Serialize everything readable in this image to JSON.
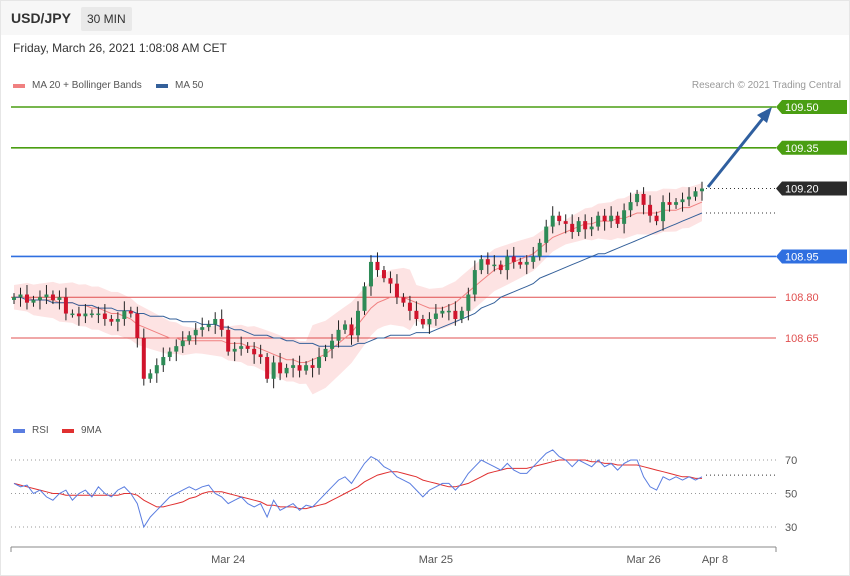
{
  "header": {
    "symbol": "USD/JPY",
    "timeframe": "30 MIN"
  },
  "date_text": "Friday, March 26, 2021 1:08:08 AM CET",
  "legend": {
    "ma20_label": "MA 20 + Bollinger Bands",
    "ma50_label": "MA 50",
    "credit": "Research © 2021 Trading Central"
  },
  "rsi_legend": {
    "rsi_label": "RSI",
    "ma9_label": "9MA"
  },
  "colors": {
    "ma20": "#f08080",
    "band_fill": "#fde3e3",
    "ma50": "#34609a",
    "up_candle": "#2e8b57",
    "down_candle": "#d0142c",
    "target": "#4a9e12",
    "pivot": "#2f6fe0",
    "support": "#e05050",
    "current": "#2b2b2b",
    "arrow": "#2f5f9f",
    "rsi": "#5a7de0",
    "rsi_ma": "#e03030"
  },
  "chart_data": [
    {
      "type": "candlestick",
      "title": "",
      "price_range": [
        108.44,
        109.56
      ],
      "x_labels": [
        {
          "label": "Mar 24",
          "index": 33
        },
        {
          "label": "Mar 25",
          "index": 65
        },
        {
          "label": "Mar 26",
          "index": 97
        },
        {
          "label": "Apr 8",
          "index": 108
        }
      ],
      "levels": [
        {
          "value": 109.5,
          "label": "109.50",
          "kind": "target"
        },
        {
          "value": 109.35,
          "label": "109.35",
          "kind": "target"
        },
        {
          "value": 109.2,
          "label": "109.20",
          "kind": "current"
        },
        {
          "value": 108.95,
          "label": "108.95",
          "kind": "pivot"
        },
        {
          "value": 108.8,
          "label": "108.80",
          "kind": "support"
        },
        {
          "value": 108.65,
          "label": "108.65",
          "kind": "support"
        }
      ],
      "close_prices": [
        108.8,
        108.81,
        108.78,
        108.79,
        108.8,
        108.81,
        108.79,
        108.8,
        108.74,
        108.74,
        108.73,
        108.74,
        108.74,
        108.74,
        108.72,
        108.71,
        108.72,
        108.75,
        108.74,
        108.65,
        108.5,
        108.52,
        108.55,
        108.58,
        108.6,
        108.62,
        108.64,
        108.66,
        108.68,
        108.69,
        108.7,
        108.72,
        108.68,
        108.6,
        108.61,
        108.62,
        108.61,
        108.59,
        108.58,
        108.5,
        108.56,
        108.52,
        108.54,
        108.55,
        108.53,
        108.55,
        108.54,
        108.58,
        108.61,
        108.64,
        108.68,
        108.7,
        108.66,
        108.75,
        108.84,
        108.93,
        108.9,
        108.87,
        108.85,
        108.8,
        108.78,
        108.75,
        108.72,
        108.7,
        108.72,
        108.74,
        108.75,
        108.75,
        108.72,
        108.75,
        108.81,
        108.9,
        108.94,
        108.92,
        108.92,
        108.9,
        108.95,
        108.93,
        108.92,
        108.93,
        108.95,
        109.0,
        109.06,
        109.1,
        109.08,
        109.07,
        109.04,
        109.08,
        109.05,
        109.06,
        109.1,
        109.08,
        109.1,
        109.07,
        109.12,
        109.15,
        109.18,
        109.14,
        109.1,
        109.08,
        109.15,
        109.14,
        109.15,
        109.16,
        109.17,
        109.19,
        109.2
      ],
      "ma20": [
        108.8,
        108.8,
        108.8,
        108.79,
        108.79,
        108.79,
        108.79,
        108.78,
        108.78,
        108.78,
        108.77,
        108.77,
        108.76,
        108.76,
        108.75,
        108.74,
        108.74,
        108.73,
        108.72,
        108.7,
        108.69,
        108.68,
        108.67,
        108.66,
        108.65,
        108.65,
        108.64,
        108.64,
        108.64,
        108.64,
        108.64,
        108.64,
        108.64,
        108.63,
        108.63,
        108.63,
        108.62,
        108.62,
        108.61,
        108.6,
        108.59,
        108.58,
        108.57,
        108.57,
        108.56,
        108.56,
        108.57,
        108.58,
        108.59,
        108.61,
        108.63,
        108.65,
        108.67,
        108.7,
        108.73,
        108.76,
        108.78,
        108.79,
        108.8,
        108.8,
        108.8,
        108.79,
        108.78,
        108.77,
        108.76,
        108.76,
        108.76,
        108.77,
        108.78,
        108.8,
        108.82,
        108.84,
        108.86,
        108.88,
        108.9,
        108.91,
        108.92,
        108.93,
        108.94,
        108.95,
        108.96,
        108.98,
        109.0,
        109.02,
        109.03,
        109.04,
        109.05,
        109.06,
        109.07,
        109.07,
        109.08,
        109.08,
        109.08,
        109.09,
        109.09,
        109.1,
        109.11,
        109.11,
        109.11,
        109.11,
        109.12,
        109.12,
        109.12,
        109.13,
        109.13,
        109.14,
        109.15
      ],
      "ma50": [
        108.8,
        108.8,
        108.79,
        108.79,
        108.79,
        108.79,
        108.78,
        108.78,
        108.78,
        108.78,
        108.77,
        108.77,
        108.77,
        108.76,
        108.76,
        108.76,
        108.75,
        108.75,
        108.75,
        108.74,
        108.74,
        108.73,
        108.73,
        108.73,
        108.72,
        108.72,
        108.71,
        108.71,
        108.71,
        108.7,
        108.7,
        108.7,
        108.69,
        108.69,
        108.68,
        108.68,
        108.67,
        108.66,
        108.66,
        108.66,
        108.65,
        108.65,
        108.64,
        108.64,
        108.63,
        108.63,
        108.63,
        108.62,
        108.62,
        108.62,
        108.62,
        108.62,
        108.62,
        108.63,
        108.63,
        108.64,
        108.65,
        108.65,
        108.66,
        108.66,
        108.66,
        108.66,
        108.67,
        108.67,
        108.67,
        108.68,
        108.69,
        108.7,
        108.71,
        108.72,
        108.73,
        108.74,
        108.76,
        108.77,
        108.78,
        108.8,
        108.81,
        108.82,
        108.83,
        108.84,
        108.85,
        108.87,
        108.88,
        108.89,
        108.9,
        108.91,
        108.92,
        108.93,
        108.94,
        108.95,
        108.96,
        108.96,
        108.97,
        108.98,
        108.99,
        109.0,
        109.01,
        109.02,
        109.03,
        109.04,
        109.05,
        109.06,
        109.07,
        109.08,
        109.09,
        109.1,
        109.11
      ]
    },
    {
      "type": "line",
      "title": "",
      "yticks": [
        30,
        50,
        70
      ],
      "ylim": [
        20,
        80
      ],
      "series": [
        {
          "name": "RSI",
          "values": [
            56,
            54,
            55,
            50,
            52,
            48,
            46,
            50,
            52,
            46,
            50,
            52,
            48,
            54,
            50,
            48,
            52,
            54,
            50,
            44,
            30,
            36,
            40,
            44,
            48,
            50,
            52,
            54,
            52,
            54,
            55,
            50,
            48,
            44,
            46,
            48,
            44,
            42,
            44,
            36,
            46,
            40,
            42,
            44,
            40,
            43,
            42,
            46,
            50,
            54,
            58,
            60,
            56,
            62,
            68,
            72,
            70,
            66,
            64,
            60,
            58,
            56,
            52,
            48,
            52,
            54,
            56,
            56,
            52,
            56,
            62,
            66,
            70,
            68,
            66,
            64,
            68,
            64,
            62,
            62,
            66,
            70,
            74,
            76,
            72,
            70,
            66,
            70,
            68,
            66,
            70,
            66,
            68,
            64,
            68,
            70,
            70,
            60,
            54,
            52,
            60,
            58,
            60,
            58,
            60,
            58,
            60
          ]
        },
        {
          "name": "9MA",
          "values": [
            56,
            55,
            54,
            53,
            52,
            51,
            50,
            50,
            49,
            49,
            49,
            49,
            49,
            49,
            49,
            49,
            49,
            50,
            50,
            49,
            46,
            44,
            42,
            42,
            43,
            44,
            45,
            47,
            48,
            50,
            51,
            51,
            51,
            50,
            49,
            48,
            47,
            46,
            45,
            43,
            43,
            42,
            42,
            42,
            41,
            41,
            42,
            43,
            44,
            46,
            48,
            50,
            52,
            54,
            57,
            59,
            61,
            62,
            63,
            63,
            62,
            61,
            60,
            58,
            57,
            56,
            55,
            54,
            54,
            55,
            56,
            58,
            60,
            62,
            63,
            64,
            65,
            65,
            65,
            65,
            66,
            67,
            68,
            69,
            70,
            70,
            70,
            70,
            70,
            69,
            69,
            68,
            68,
            67,
            67,
            67,
            67,
            66,
            65,
            64,
            63,
            62,
            61,
            60,
            60,
            59,
            59
          ]
        }
      ]
    }
  ]
}
